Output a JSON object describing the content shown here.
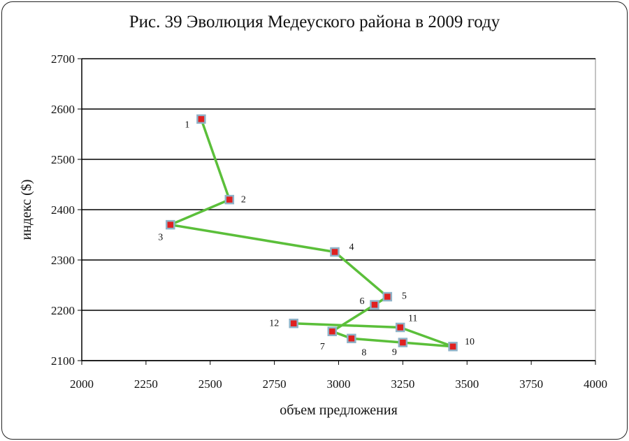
{
  "chart_data": {
    "type": "line",
    "title": "Рис. 39 Эволюция Медеуского района в 2009 году",
    "xlabel": "объем предложения",
    "ylabel": "индекс ($)",
    "xlim": [
      2000,
      4000
    ],
    "ylim": [
      2100,
      2700
    ],
    "x_ticks": [
      "2000",
      "2250",
      "2500",
      "2750",
      "3000",
      "3250",
      "3500",
      "3750",
      "4000"
    ],
    "y_ticks": [
      "2700",
      "2600",
      "2500",
      "2400",
      "2300",
      "2200",
      "2100"
    ],
    "grid": "horizontal",
    "line_color": "#5bbf3a",
    "marker_color": "#e02020",
    "marker_border": "#8fb2c8",
    "points": [
      {
        "label": "1",
        "x": 2465,
        "y": 2580
      },
      {
        "label": "2",
        "x": 2575,
        "y": 2420
      },
      {
        "label": "3",
        "x": 2345,
        "y": 2370
      },
      {
        "label": "4",
        "x": 2985,
        "y": 2316
      },
      {
        "label": "5",
        "x": 3190,
        "y": 2227
      },
      {
        "label": "6",
        "x": 3140,
        "y": 2211
      },
      {
        "label": "7",
        "x": 2975,
        "y": 2158
      },
      {
        "label": "8",
        "x": 3050,
        "y": 2144
      },
      {
        "label": "9",
        "x": 3250,
        "y": 2136
      },
      {
        "label": "10",
        "x": 3445,
        "y": 2128
      },
      {
        "label": "11",
        "x": 3240,
        "y": 2166
      },
      {
        "label": "12",
        "x": 2825,
        "y": 2174
      }
    ]
  }
}
